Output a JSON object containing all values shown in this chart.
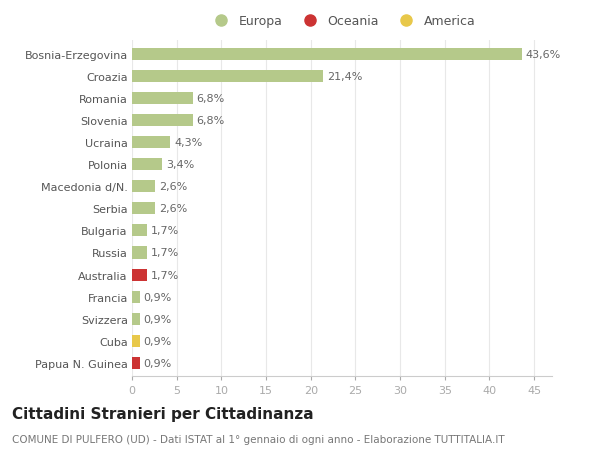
{
  "categories": [
    "Papua N. Guinea",
    "Cuba",
    "Svizzera",
    "Francia",
    "Australia",
    "Russia",
    "Bulgaria",
    "Serbia",
    "Macedonia d/N.",
    "Polonia",
    "Ucraina",
    "Slovenia",
    "Romania",
    "Croazia",
    "Bosnia-Erzegovina"
  ],
  "values": [
    0.9,
    0.9,
    0.9,
    0.9,
    1.7,
    1.7,
    1.7,
    2.6,
    2.6,
    3.4,
    4.3,
    6.8,
    6.8,
    21.4,
    43.6
  ],
  "labels": [
    "0,9%",
    "0,9%",
    "0,9%",
    "0,9%",
    "1,7%",
    "1,7%",
    "1,7%",
    "2,6%",
    "2,6%",
    "3,4%",
    "4,3%",
    "6,8%",
    "6,8%",
    "21,4%",
    "43,6%"
  ],
  "colors": [
    "#cc3333",
    "#e8c84a",
    "#b5c98a",
    "#b5c98a",
    "#cc3333",
    "#b5c98a",
    "#b5c98a",
    "#b5c98a",
    "#b5c98a",
    "#b5c98a",
    "#b5c98a",
    "#b5c98a",
    "#b5c98a",
    "#b5c98a",
    "#b5c98a"
  ],
  "legend_labels": [
    "Europa",
    "Oceania",
    "America"
  ],
  "legend_colors": [
    "#b5c98a",
    "#cc3333",
    "#e8c84a"
  ],
  "title": "Cittadini Stranieri per Cittadinanza",
  "subtitle": "COMUNE DI PULFERO (UD) - Dati ISTAT al 1° gennaio di ogni anno - Elaborazione TUTTITALIA.IT",
  "xlim": [
    0,
    47
  ],
  "xticks": [
    0,
    5,
    10,
    15,
    20,
    25,
    30,
    35,
    40,
    45
  ],
  "background_color": "#ffffff",
  "grid_color": "#e8e8e8",
  "bar_height": 0.55,
  "label_fontsize": 8,
  "tick_fontsize": 8,
  "title_fontsize": 11,
  "subtitle_fontsize": 7.5
}
